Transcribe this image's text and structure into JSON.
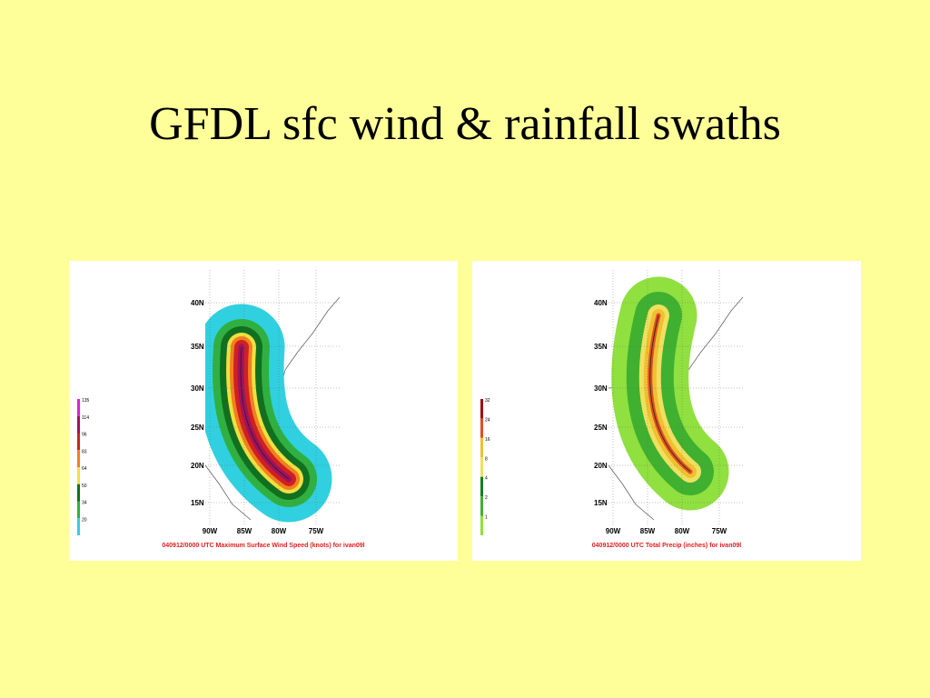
{
  "title": "GFDL sfc wind & rainfall swaths",
  "panels": [
    {
      "lat_labels": [
        "40N",
        "35N",
        "30N",
        "25N",
        "20N",
        "15N"
      ],
      "lon_labels": [
        "90W",
        "85W",
        "80W",
        "75W"
      ],
      "legend_labels": [
        "135",
        "114",
        "96",
        "83",
        "64",
        "50",
        "34",
        "20"
      ],
      "legend_colors": [
        "#e020d0",
        "#a01060",
        "#d02020",
        "#f08020",
        "#f0e040",
        "#107020",
        "#30b040",
        "#30d0e0"
      ],
      "caption": "040912/0000 UTC Maximum Surface Wind Speed (knots) for ivan09l"
    },
    {
      "lat_labels": [
        "40N",
        "35N",
        "30N",
        "25N",
        "20N",
        "15N"
      ],
      "lon_labels": [
        "90W",
        "85W",
        "80W",
        "75W"
      ],
      "legend_labels": [
        "32",
        "24",
        "16",
        "8",
        "4",
        "2",
        "1"
      ],
      "legend_colors": [
        "#a01010",
        "#e05020",
        "#f0c030",
        "#f0e060",
        "#108020",
        "#40b030",
        "#90e040"
      ],
      "caption": "040912/0000 UTC Total Precip (inches) for ivan09l"
    }
  ]
}
